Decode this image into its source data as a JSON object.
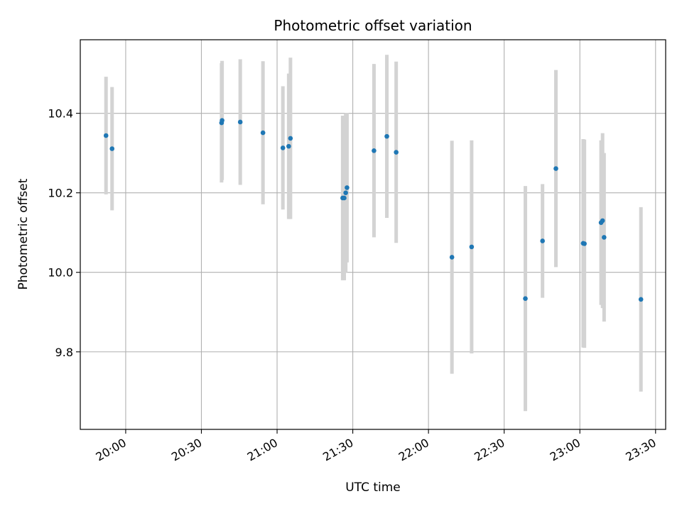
{
  "chart_data": {
    "type": "scatter",
    "title": "Photometric offset variation",
    "xlabel": "UTC time",
    "ylabel": "Photometric offset",
    "grid": true,
    "xlim": [
      "19:42",
      "23:34"
    ],
    "ylim": [
      9.605,
      10.585
    ],
    "xticks": [
      "20:00",
      "20:30",
      "21:00",
      "21:30",
      "22:00",
      "22:30",
      "23:00",
      "23:30"
    ],
    "yticks": [
      "9.8",
      "10.0",
      "10.2",
      "10.4"
    ],
    "colors": {
      "point": "#1f77b4",
      "errorbar": "#d3d3d3",
      "grid": "#b0b0b0"
    },
    "points": [
      {
        "time": "19:52.2",
        "value": 10.344,
        "err": 0.148
      },
      {
        "time": "19:54.6",
        "value": 10.311,
        "err": 0.155
      },
      {
        "time": "20:38.0",
        "value": 10.376,
        "err": 0.15
      },
      {
        "time": "20:38.2",
        "value": 10.382,
        "err": 0.15
      },
      {
        "time": "20:45.4",
        "value": 10.378,
        "err": 0.158
      },
      {
        "time": "20:54.4",
        "value": 10.351,
        "err": 0.18
      },
      {
        "time": "21:02.3",
        "value": 10.313,
        "err": 0.155
      },
      {
        "time": "21:04.6",
        "value": 10.317,
        "err": 0.183
      },
      {
        "time": "21:05.3",
        "value": 10.337,
        "err": 0.203
      },
      {
        "time": "21:26.0",
        "value": 10.187,
        "err": 0.207
      },
      {
        "time": "21:26.6",
        "value": 10.187,
        "err": 0.207
      },
      {
        "time": "21:27.2",
        "value": 10.2,
        "err": 0.2
      },
      {
        "time": "21:27.7",
        "value": 10.213,
        "err": 0.188
      },
      {
        "time": "21:38.4",
        "value": 10.306,
        "err": 0.218
      },
      {
        "time": "21:43.5",
        "value": 10.342,
        "err": 0.205
      },
      {
        "time": "21:47.2",
        "value": 10.302,
        "err": 0.228
      },
      {
        "time": "22:09.3",
        "value": 10.038,
        "err": 0.293
      },
      {
        "time": "22:17.1",
        "value": 10.064,
        "err": 0.268
      },
      {
        "time": "22:38.4",
        "value": 9.934,
        "err": 0.283
      },
      {
        "time": "22:45.2",
        "value": 10.079,
        "err": 0.143
      },
      {
        "time": "22:50.5",
        "value": 10.261,
        "err": 0.248
      },
      {
        "time": "23:01.3",
        "value": 10.073,
        "err": 0.262
      },
      {
        "time": "23:01.8",
        "value": 10.072,
        "err": 0.262
      },
      {
        "time": "23:08.4",
        "value": 10.125,
        "err": 0.207
      },
      {
        "time": "23:09.0",
        "value": 10.13,
        "err": 0.22
      },
      {
        "time": "23:09.6",
        "value": 10.088,
        "err": 0.212
      },
      {
        "time": "23:24.2",
        "value": 9.932,
        "err": 0.232
      }
    ]
  }
}
